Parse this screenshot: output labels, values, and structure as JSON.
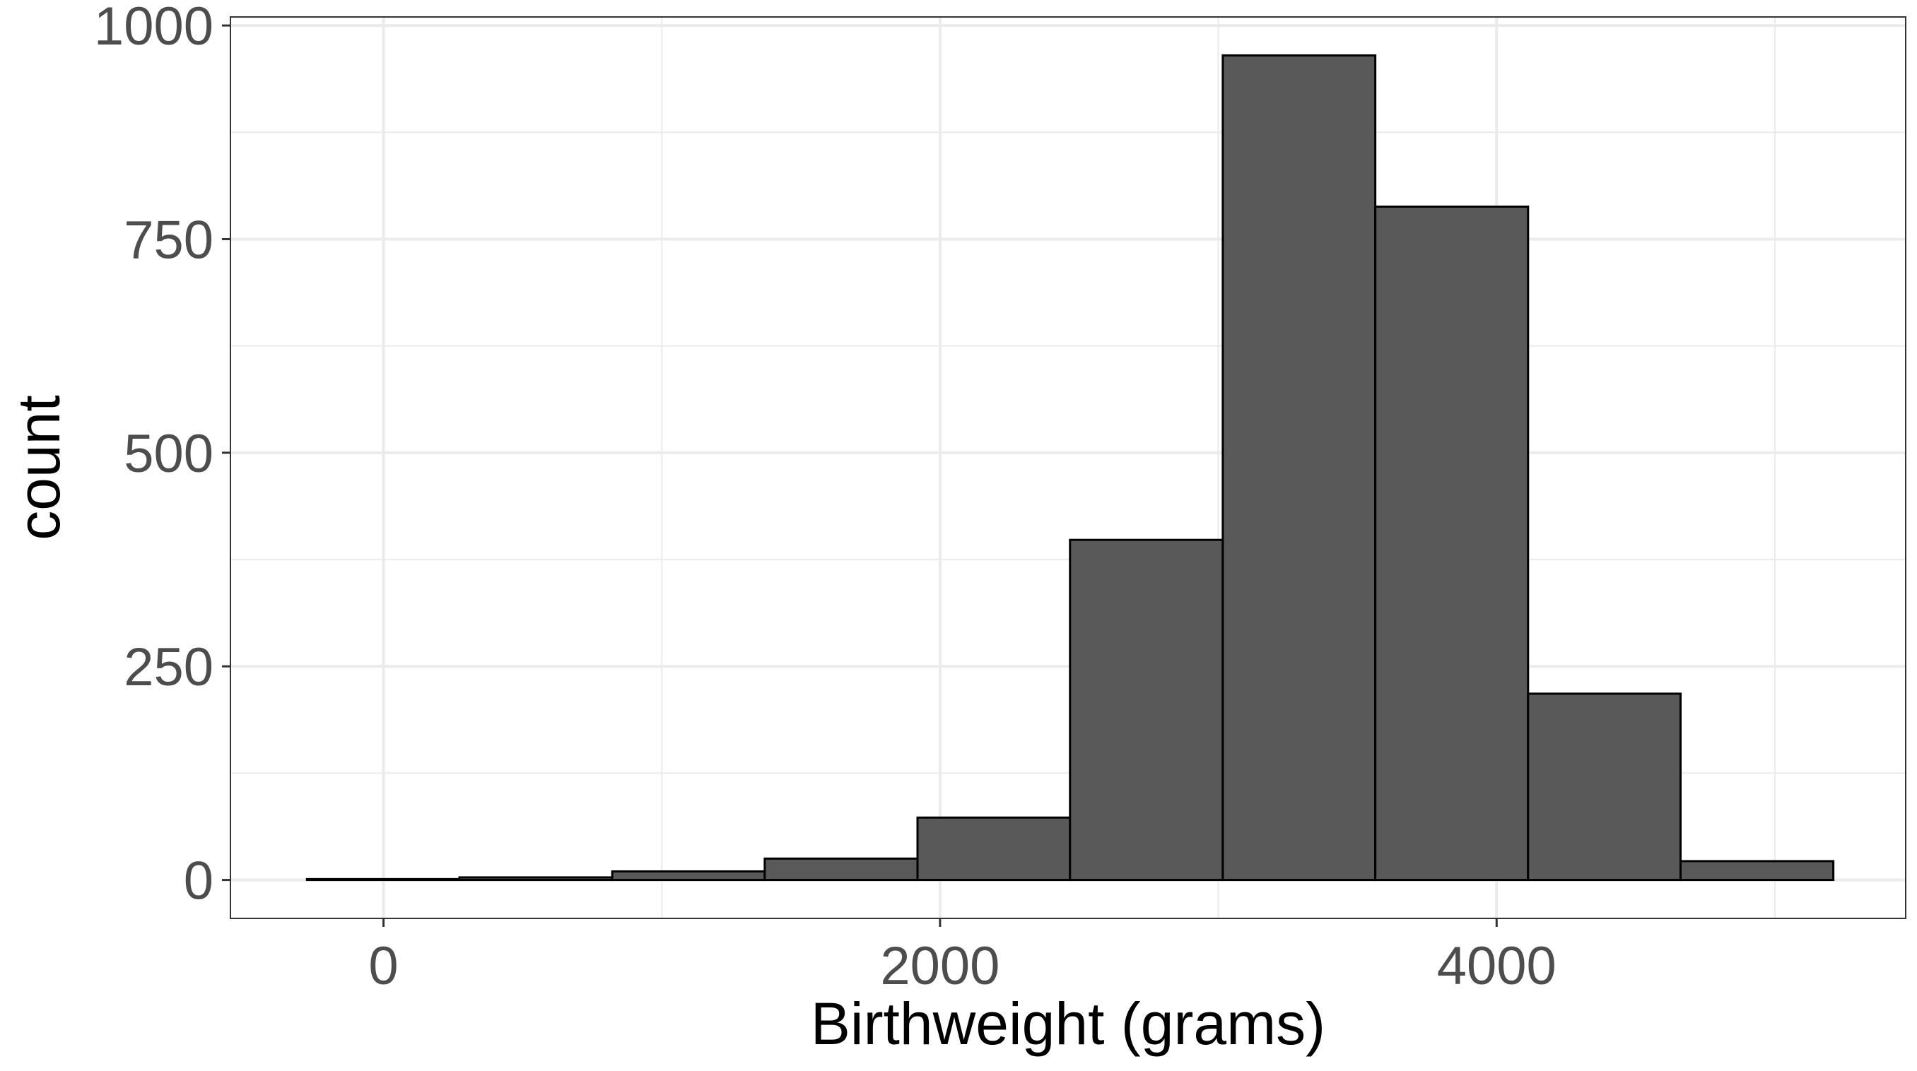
{
  "chart_data": {
    "type": "histogram",
    "title": "",
    "xlabel": "Birthweight (grams)",
    "ylabel": "count",
    "xlim": [
      -550,
      5470
    ],
    "ylim": [
      -45,
      1010
    ],
    "x_ticks": [
      0,
      2000,
      4000
    ],
    "y_ticks": [
      0,
      250,
      500,
      750,
      1000
    ],
    "x_minor_gridlines": [
      1000,
      3000,
      5000
    ],
    "y_minor_gridlines": [
      125,
      375,
      625,
      875
    ],
    "grid": true,
    "bins": [
      {
        "x0": -275,
        "x1": 273,
        "count": 1
      },
      {
        "x0": 273,
        "x1": 822,
        "count": 3
      },
      {
        "x0": 822,
        "x1": 1370,
        "count": 10
      },
      {
        "x0": 1370,
        "x1": 1919,
        "count": 25
      },
      {
        "x0": 1919,
        "x1": 2467,
        "count": 73
      },
      {
        "x0": 2467,
        "x1": 3016,
        "count": 398
      },
      {
        "x0": 3016,
        "x1": 3564,
        "count": 965
      },
      {
        "x0": 3564,
        "x1": 4113,
        "count": 788
      },
      {
        "x0": 4113,
        "x1": 4661,
        "count": 218
      },
      {
        "x0": 4661,
        "x1": 5210,
        "count": 22
      }
    ],
    "colors": {
      "bar_fill": "#595959",
      "bar_stroke": "#000000",
      "major_grid": "#ebebeb",
      "minor_grid": "#ebebeb",
      "panel_border": "#333333",
      "tick_text": "#4d4d4d",
      "title_text": "#000000"
    }
  }
}
